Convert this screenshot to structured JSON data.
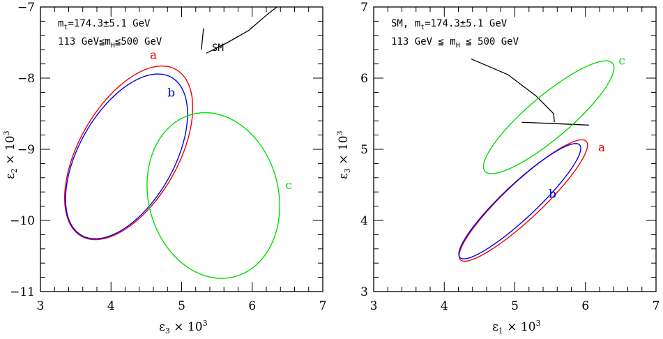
{
  "chart_data": [
    {
      "type": "line",
      "xlim": [
        3,
        7
      ],
      "ylim": [
        -11,
        -7
      ],
      "x_ticks": [
        "3",
        "4",
        "5",
        "6",
        "7"
      ],
      "y_ticks": [
        "−11",
        "−10",
        "−9",
        "−8",
        "−7"
      ],
      "xlabel": {
        "sym": "ε",
        "sub": "3",
        "mid": " × 10",
        "sup": "3"
      },
      "ylabel": {
        "sym": "ε",
        "sub": "2",
        "mid": " × 10",
        "sup": "3"
      },
      "annotation": {
        "line1": {
          "pre": "m",
          "sub": "t",
          "post": "=174.3±5.1 GeV"
        },
        "line2": {
          "pre": "113 GeV≦m",
          "sub": "H",
          "post": "≦500 GeV"
        }
      },
      "sm_label": "SM",
      "sm_line": [
        [
          5.35,
          -7.65
        ],
        [
          5.65,
          -7.5
        ],
        [
          5.95,
          -7.33
        ],
        [
          6.22,
          -7.1
        ],
        [
          6.35,
          -7.0
        ]
      ],
      "sm_tick": [
        [
          5.28,
          -7.6
        ],
        [
          5.31,
          -7.3
        ]
      ],
      "series": [
        {
          "label": "a",
          "color": "#ee0000",
          "cx": 4.25,
          "cy": -9.05,
          "a": 1.35,
          "b": 0.7,
          "angle_deg": 60,
          "label_pos": [
            4.55,
            -7.73
          ]
        },
        {
          "label": "b",
          "color": "#0000ee",
          "cx": 4.22,
          "cy": -9.1,
          "a": 1.28,
          "b": 0.67,
          "angle_deg": 60,
          "label_pos": [
            4.8,
            -8.26
          ]
        },
        {
          "label": "c",
          "color": "#00dd00",
          "cx": 5.45,
          "cy": -9.65,
          "a": 1.18,
          "b": 0.92,
          "angle_deg": 105,
          "label_pos": [
            6.47,
            -9.56
          ]
        }
      ]
    },
    {
      "type": "line",
      "xlim": [
        3,
        7
      ],
      "ylim": [
        3,
        7
      ],
      "x_ticks": [
        "3",
        "4",
        "5",
        "6",
        "7"
      ],
      "y_ticks": [
        "3",
        "4",
        "5",
        "6",
        "7"
      ],
      "xlabel": {
        "sym": "ε",
        "sub": "1",
        "mid": " × 10",
        "sup": "3"
      },
      "ylabel": {
        "sym": "ε",
        "sub": "3",
        "mid": " × 10",
        "sup": "3"
      },
      "annotation": {
        "line1": {
          "pre": "SM, m",
          "sub": "t",
          "post": "=174.3±5.1 GeV"
        },
        "line2": {
          "pre": "113 GeV ≦ m",
          "sub": "H",
          "post": " ≦ 500 GeV"
        }
      },
      "sm_line": [
        [
          4.38,
          6.27
        ],
        [
          4.9,
          6.05
        ],
        [
          5.3,
          5.75
        ],
        [
          5.55,
          5.5
        ],
        [
          5.56,
          5.38
        ]
      ],
      "sm_tick": [
        [
          5.1,
          5.38
        ],
        [
          6.05,
          5.34
        ]
      ],
      "series": [
        {
          "label": "a",
          "color": "#ee0000",
          "cx": 5.12,
          "cy": 4.28,
          "a": 1.22,
          "b": 0.26,
          "angle_deg": 43,
          "label_pos": [
            6.18,
            4.97
          ]
        },
        {
          "label": "b",
          "color": "#0000ee",
          "cx": 5.07,
          "cy": 4.27,
          "a": 1.16,
          "b": 0.24,
          "angle_deg": 43,
          "label_pos": [
            5.48,
            4.32
          ]
        },
        {
          "label": "c",
          "color": "#00dd00",
          "cx": 5.48,
          "cy": 5.45,
          "a": 1.18,
          "b": 0.3,
          "angle_deg": 40,
          "label_pos": [
            6.47,
            6.19
          ]
        }
      ]
    }
  ]
}
